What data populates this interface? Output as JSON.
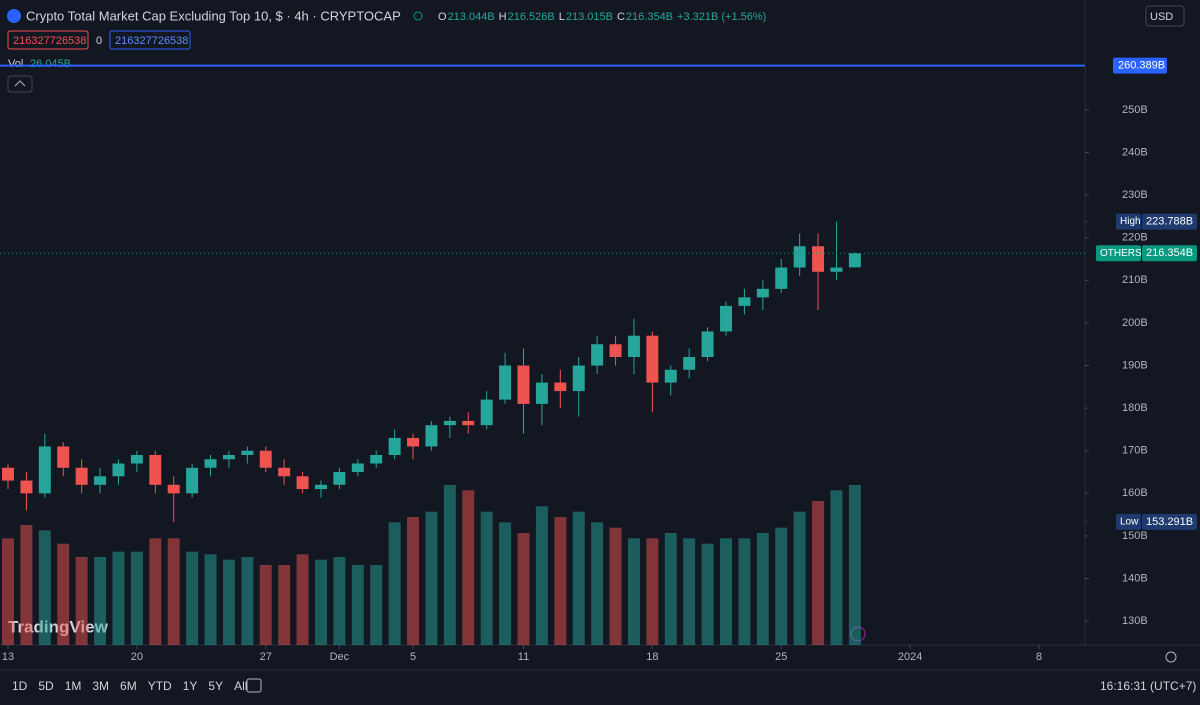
{
  "header": {
    "title": "Crypto Total Market Cap Excluding Top 10, $ · 4h · CRYPTOCAP",
    "ohlc": [
      {
        "key": "O",
        "value": "213.044B"
      },
      {
        "key": "H",
        "value": "216.526B"
      },
      {
        "key": "L",
        "value": "213.015B"
      },
      {
        "key": "C",
        "value": "216.354B"
      }
    ],
    "change": "+3.321B (+1.56%)",
    "inputs": [
      "216327726538",
      "0",
      "216327726538"
    ],
    "currency": "USD",
    "volume_label": "Vol",
    "volume_value": "26.045B"
  },
  "watermark": "TradingView",
  "toolbar": {
    "ranges": [
      "1D",
      "5D",
      "1M",
      "3M",
      "6M",
      "YTD",
      "1Y",
      "5Y",
      "All"
    ],
    "clock": "16:16:31 (UTC+7)"
  },
  "chart_data": {
    "type": "candlestick",
    "up_color": "#26a69a",
    "down_color": "#ef5350",
    "xlim": [
      0.565,
      59.5
    ],
    "xticks": [
      {
        "value": 1,
        "label": "13"
      },
      {
        "value": 8,
        "label": "20"
      },
      {
        "value": 15,
        "label": "27"
      },
      {
        "value": 19,
        "label": "Dec"
      },
      {
        "value": 23,
        "label": "5"
      },
      {
        "value": 29,
        "label": "11"
      },
      {
        "value": 36,
        "label": "18"
      },
      {
        "value": 43,
        "label": "25"
      },
      {
        "value": 50,
        "label": "2024"
      },
      {
        "value": 57,
        "label": "8"
      }
    ],
    "ylim": [
      124.4,
      275.8
    ],
    "yticks": [
      {
        "value": 130,
        "label": "130B"
      },
      {
        "value": 140,
        "label": "140B"
      },
      {
        "value": 150,
        "label": "150B"
      },
      {
        "value": 160,
        "label": "160B"
      },
      {
        "value": 170,
        "label": "170B"
      },
      {
        "value": 180,
        "label": "180B"
      },
      {
        "value": 190,
        "label": "190B"
      },
      {
        "value": 200,
        "label": "200B"
      },
      {
        "value": 210,
        "label": "210B"
      },
      {
        "value": 220,
        "label": "220B"
      },
      {
        "value": 230,
        "label": "230B"
      },
      {
        "value": 240,
        "label": "240B"
      },
      {
        "value": 250,
        "label": "250B"
      }
    ],
    "hline": {
      "value": 260.389,
      "label": "260.389B",
      "color": "#2962ff"
    },
    "markers": [
      {
        "name": "High",
        "value": 223.788,
        "label": "223.788B",
        "color": "#1e3a6e"
      },
      {
        "name": "OTHERS",
        "value": 216.354,
        "label": "216.354B",
        "color": "#089981"
      },
      {
        "name": "Low",
        "value": 153.291,
        "label": "153.291B",
        "color": "#1e3a6e"
      }
    ],
    "open": [
      165,
      166,
      163,
      160,
      171,
      166,
      162,
      164,
      167,
      169,
      162,
      160,
      166,
      168,
      169,
      170,
      166,
      164,
      161,
      162,
      165,
      167,
      169,
      173,
      171,
      176,
      177,
      176,
      182,
      190,
      181,
      186,
      184,
      190,
      195,
      192,
      197,
      186,
      189,
      192,
      198,
      204,
      206,
      208,
      213,
      218,
      212,
      213.044
    ],
    "high": [
      168,
      167,
      165,
      174,
      172,
      168,
      166,
      168,
      170,
      170,
      164,
      167,
      169,
      170,
      171,
      171,
      168,
      165,
      163,
      166,
      168,
      170,
      175,
      174,
      177,
      178,
      179,
      184,
      193,
      194,
      188,
      189,
      192,
      197,
      197,
      201,
      198,
      190,
      194,
      199,
      205,
      208,
      210,
      215,
      221,
      221,
      223.788,
      216.526
    ],
    "low": [
      163,
      161,
      156,
      159,
      164,
      160,
      160,
      162,
      165,
      160,
      153.291,
      159,
      164,
      166,
      167,
      165,
      162,
      160,
      159,
      161,
      164,
      166,
      168,
      168,
      170,
      173,
      174,
      175,
      181,
      174,
      176,
      180,
      178,
      188,
      190,
      188,
      179,
      183,
      187,
      191,
      197,
      202,
      203,
      207,
      211,
      203,
      210,
      213.015
    ],
    "close": [
      166,
      163,
      160,
      171,
      166,
      162,
      164,
      167,
      169,
      162,
      160,
      166,
      168,
      169,
      170,
      166,
      164,
      161,
      162,
      165,
      167,
      169,
      173,
      171,
      176,
      177,
      176,
      182,
      190,
      181,
      186,
      184,
      190,
      195,
      192,
      197,
      186,
      189,
      192,
      198,
      204,
      206,
      208,
      213,
      218,
      212,
      213,
      216.354
    ],
    "volume_lim": [
      0,
      60
    ],
    "volume": [
      40,
      40,
      45,
      43,
      38,
      33,
      33,
      35,
      35,
      40,
      40,
      35,
      34,
      32,
      33,
      30,
      30,
      34,
      32,
      33,
      30,
      30,
      46,
      48,
      50,
      60,
      58,
      50,
      46,
      42,
      52,
      48,
      50,
      46,
      44,
      40,
      40,
      42,
      40,
      38,
      40,
      40,
      42,
      44,
      50,
      54,
      58,
      60
    ]
  }
}
